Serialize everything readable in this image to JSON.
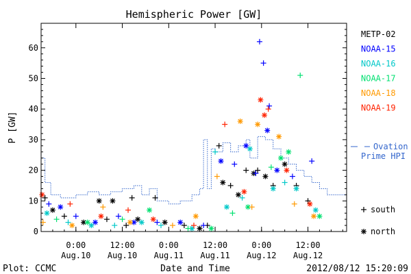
{
  "chart_data": {
    "type": "scatter",
    "title": "Hemispheric Power [GW]",
    "xlabel": "Date and Time",
    "ylabel": "P [GW]",
    "ylim": [
      0,
      68
    ],
    "xlim": [
      "2012-08-09 15:00",
      "2012-08-12 22:00"
    ],
    "yticks": [
      0,
      10,
      20,
      30,
      40,
      50,
      60
    ],
    "xticks": [
      {
        "time": "2012-08-10 00:00",
        "line1": "0:00",
        "line2": "Aug.10"
      },
      {
        "time": "2012-08-10 12:00",
        "line1": "12:00",
        "line2": "Aug.10"
      },
      {
        "time": "2012-08-11 00:00",
        "line1": "0:00",
        "line2": "Aug.11"
      },
      {
        "time": "2012-08-11 12:00",
        "line1": "12:00",
        "line2": "Aug.11"
      },
      {
        "time": "2012-08-12 00:00",
        "line1": "0:00",
        "line2": "Aug.12"
      },
      {
        "time": "2012-08-12 12:00",
        "line1": "12:00",
        "line2": "Aug.12"
      }
    ],
    "legend_placement": "right",
    "marker_legend": [
      {
        "symbol": "+",
        "label": "south"
      },
      {
        "symbol": "*",
        "label": "north"
      }
    ],
    "series": [
      {
        "name": "METP-02",
        "color": "#000000",
        "points": [
          {
            "t": "2012-08-09 16:00",
            "p": 11,
            "m": "+"
          },
          {
            "t": "2012-08-09 18:00",
            "p": 7,
            "m": "*"
          },
          {
            "t": "2012-08-09 21:00",
            "p": 5,
            "m": "+"
          },
          {
            "t": "2012-08-10 02:00",
            "p": 3,
            "m": "*"
          },
          {
            "t": "2012-08-10 06:00",
            "p": 10,
            "m": "*"
          },
          {
            "t": "2012-08-10 08:00",
            "p": 4,
            "m": "+"
          },
          {
            "t": "2012-08-10 09:30",
            "p": 10,
            "m": "*"
          },
          {
            "t": "2012-08-10 13:00",
            "p": 2,
            "m": "+"
          },
          {
            "t": "2012-08-10 14:30",
            "p": 11,
            "m": "+"
          },
          {
            "t": "2012-08-10 16:00",
            "p": 4,
            "m": "*"
          },
          {
            "t": "2012-08-10 20:30",
            "p": 11,
            "m": "+"
          },
          {
            "t": "2012-08-10 23:00",
            "p": 3,
            "m": "*"
          },
          {
            "t": "2012-08-11 04:00",
            "p": 2,
            "m": "+"
          },
          {
            "t": "2012-08-11 08:00",
            "p": 1,
            "m": "*"
          },
          {
            "t": "2012-08-11 10:00",
            "p": 2,
            "m": "+"
          },
          {
            "t": "2012-08-11 13:00",
            "p": 28,
            "m": "+"
          },
          {
            "t": "2012-08-11 14:00",
            "p": 16,
            "m": "*"
          },
          {
            "t": "2012-08-11 16:00",
            "p": 15,
            "m": "+"
          },
          {
            "t": "2012-08-11 18:00",
            "p": 12,
            "m": "*"
          },
          {
            "t": "2012-08-11 20:00",
            "p": 20,
            "m": "+"
          },
          {
            "t": "2012-08-11 22:00",
            "p": 19,
            "m": "*"
          },
          {
            "t": "2012-08-11 23:00",
            "p": 20,
            "m": "+"
          },
          {
            "t": "2012-08-12 01:00",
            "p": 18,
            "m": "*"
          },
          {
            "t": "2012-08-12 03:00",
            "p": 15,
            "m": "+"
          },
          {
            "t": "2012-08-12 06:00",
            "p": 22,
            "m": "*"
          },
          {
            "t": "2012-08-12 09:00",
            "p": 15,
            "m": "+"
          },
          {
            "t": "2012-08-12 12:00",
            "p": 10,
            "m": "+"
          }
        ]
      },
      {
        "name": "NOAA-15",
        "color": "#0000ff",
        "points": [
          {
            "t": "2012-08-09 17:00",
            "p": 9,
            "m": "+"
          },
          {
            "t": "2012-08-09 20:00",
            "p": 8,
            "m": "*"
          },
          {
            "t": "2012-08-10 00:00",
            "p": 5,
            "m": "+"
          },
          {
            "t": "2012-08-10 05:00",
            "p": 3,
            "m": "*"
          },
          {
            "t": "2012-08-10 11:00",
            "p": 5,
            "m": "+"
          },
          {
            "t": "2012-08-10 15:00",
            "p": 3,
            "m": "*"
          },
          {
            "t": "2012-08-10 21:00",
            "p": 3,
            "m": "+"
          },
          {
            "t": "2012-08-11 03:00",
            "p": 3,
            "m": "*"
          },
          {
            "t": "2012-08-11 09:00",
            "p": 2,
            "m": "+"
          },
          {
            "t": "2012-08-11 13:30",
            "p": 23,
            "m": "*"
          },
          {
            "t": "2012-08-11 17:00",
            "p": 22,
            "m": "+"
          },
          {
            "t": "2012-08-11 20:00",
            "p": 28,
            "m": "*"
          },
          {
            "t": "2012-08-11 22:30",
            "p": 19,
            "m": "+"
          },
          {
            "t": "2012-08-11 23:30",
            "p": 62,
            "m": "+"
          },
          {
            "t": "2012-08-12 00:30",
            "p": 55,
            "m": "+"
          },
          {
            "t": "2012-08-12 02:00",
            "p": 41,
            "m": "+"
          },
          {
            "t": "2012-08-12 01:30",
            "p": 33,
            "m": "*"
          },
          {
            "t": "2012-08-12 04:00",
            "p": 20,
            "m": "*"
          },
          {
            "t": "2012-08-12 08:00",
            "p": 18,
            "m": "+"
          },
          {
            "t": "2012-08-12 13:00",
            "p": 23,
            "m": "+"
          }
        ]
      },
      {
        "name": "NOAA-16",
        "color": "#00c8c8",
        "points": [
          {
            "t": "2012-08-09 16:30",
            "p": 6,
            "m": "*"
          },
          {
            "t": "2012-08-09 22:00",
            "p": 3,
            "m": "+"
          },
          {
            "t": "2012-08-10 04:00",
            "p": 2,
            "m": "*"
          },
          {
            "t": "2012-08-10 10:00",
            "p": 2,
            "m": "+"
          },
          {
            "t": "2012-08-10 17:00",
            "p": 3,
            "m": "*"
          },
          {
            "t": "2012-08-10 22:00",
            "p": 2,
            "m": "+"
          },
          {
            "t": "2012-08-11 06:00",
            "p": 1,
            "m": "*"
          },
          {
            "t": "2012-08-11 12:00",
            "p": 26,
            "m": "+"
          },
          {
            "t": "2012-08-11 15:00",
            "p": 8,
            "m": "*"
          },
          {
            "t": "2012-08-11 19:00",
            "p": 11,
            "m": "+"
          },
          {
            "t": "2012-08-11 21:00",
            "p": 27,
            "m": "*"
          },
          {
            "t": "2012-08-12 03:00",
            "p": 14,
            "m": "*"
          },
          {
            "t": "2012-08-12 06:00",
            "p": 16,
            "m": "+"
          },
          {
            "t": "2012-08-12 09:00",
            "p": 14,
            "m": "*"
          },
          {
            "t": "2012-08-12 14:00",
            "p": 7,
            "m": "*"
          }
        ]
      },
      {
        "name": "NOAA-17",
        "color": "#00e070",
        "points": [
          {
            "t": "2012-08-09 19:00",
            "p": 4,
            "m": "+"
          },
          {
            "t": "2012-08-10 03:00",
            "p": 3,
            "m": "*"
          },
          {
            "t": "2012-08-10 12:00",
            "p": 4,
            "m": "+"
          },
          {
            "t": "2012-08-10 19:00",
            "p": 7,
            "m": "*"
          },
          {
            "t": "2012-08-11 05:00",
            "p": 1,
            "m": "+"
          },
          {
            "t": "2012-08-11 11:00",
            "p": 1,
            "m": "*"
          },
          {
            "t": "2012-08-11 16:30",
            "p": 6,
            "m": "+"
          },
          {
            "t": "2012-08-11 20:30",
            "p": 8,
            "m": "*"
          },
          {
            "t": "2012-08-12 02:30",
            "p": 21,
            "m": "+"
          },
          {
            "t": "2012-08-12 05:00",
            "p": 24,
            "m": "*"
          },
          {
            "t": "2012-08-12 07:00",
            "p": 26,
            "m": "*"
          },
          {
            "t": "2012-08-12 10:00",
            "p": 51,
            "m": "+"
          },
          {
            "t": "2012-08-12 15:00",
            "p": 5,
            "m": "*"
          }
        ]
      },
      {
        "name": "NOAA-18",
        "color": "#ff9900",
        "points": [
          {
            "t": "2012-08-09 15:30",
            "p": 3,
            "m": "+"
          },
          {
            "t": "2012-08-09 23:00",
            "p": 2,
            "m": "*"
          },
          {
            "t": "2012-08-10 07:00",
            "p": 8,
            "m": "+"
          },
          {
            "t": "2012-08-10 14:00",
            "p": 3,
            "m": "*"
          },
          {
            "t": "2012-08-11 01:00",
            "p": 2,
            "m": "+"
          },
          {
            "t": "2012-08-11 07:00",
            "p": 5,
            "m": "*"
          },
          {
            "t": "2012-08-11 12:30",
            "p": 18,
            "m": "+"
          },
          {
            "t": "2012-08-11 18:30",
            "p": 36,
            "m": "*"
          },
          {
            "t": "2012-08-11 21:30",
            "p": 8,
            "m": "+"
          },
          {
            "t": "2012-08-11 23:00",
            "p": 35,
            "m": "*"
          },
          {
            "t": "2012-08-12 04:30",
            "p": 31,
            "m": "*"
          },
          {
            "t": "2012-08-12 08:30",
            "p": 9,
            "m": "+"
          },
          {
            "t": "2012-08-12 13:30",
            "p": 5,
            "m": "*"
          }
        ]
      },
      {
        "name": "NOAA-19",
        "color": "#ff2200",
        "points": [
          {
            "t": "2012-08-09 15:15",
            "p": 12,
            "m": "*"
          },
          {
            "t": "2012-08-09 22:30",
            "p": 9,
            "m": "+"
          },
          {
            "t": "2012-08-10 06:30",
            "p": 5,
            "m": "*"
          },
          {
            "t": "2012-08-10 13:30",
            "p": 7,
            "m": "+"
          },
          {
            "t": "2012-08-10 20:00",
            "p": 4,
            "m": "*"
          },
          {
            "t": "2012-08-11 06:30",
            "p": 2,
            "m": "+"
          },
          {
            "t": "2012-08-11 14:30",
            "p": 35,
            "m": "+"
          },
          {
            "t": "2012-08-11 19:30",
            "p": 13,
            "m": "*"
          },
          {
            "t": "2012-08-11 23:45",
            "p": 43,
            "m": "*"
          },
          {
            "t": "2012-08-12 00:45",
            "p": 38,
            "m": "*"
          },
          {
            "t": "2012-08-12 01:45",
            "p": 40,
            "m": "+"
          },
          {
            "t": "2012-08-12 06:30",
            "p": 20,
            "m": "*"
          },
          {
            "t": "2012-08-12 12:30",
            "p": 9,
            "m": "*"
          }
        ]
      }
    ],
    "line_series": [
      {
        "name": "Ovation Prime HPI",
        "legend_lines": [
          "Ovation",
          "Prime HPI"
        ],
        "color": "#3366cc",
        "style": "stepped",
        "points": [
          [
            "2012-08-09 15:00",
            24
          ],
          [
            "2012-08-09 16:00",
            16
          ],
          [
            "2012-08-09 17:30",
            12
          ],
          [
            "2012-08-09 20:00",
            11
          ],
          [
            "2012-08-10 00:00",
            12
          ],
          [
            "2012-08-10 03:00",
            13
          ],
          [
            "2012-08-10 06:00",
            12
          ],
          [
            "2012-08-10 09:00",
            13
          ],
          [
            "2012-08-10 12:00",
            14
          ],
          [
            "2012-08-10 15:00",
            15
          ],
          [
            "2012-08-10 17:00",
            12
          ],
          [
            "2012-08-10 19:00",
            14
          ],
          [
            "2012-08-10 21:00",
            10
          ],
          [
            "2012-08-11 00:00",
            9
          ],
          [
            "2012-08-11 03:00",
            10
          ],
          [
            "2012-08-11 06:00",
            12
          ],
          [
            "2012-08-11 08:00",
            14
          ],
          [
            "2012-08-11 09:00",
            30
          ],
          [
            "2012-08-11 10:00",
            14
          ],
          [
            "2012-08-11 11:00",
            27
          ],
          [
            "2012-08-11 12:00",
            26
          ],
          [
            "2012-08-11 14:00",
            29
          ],
          [
            "2012-08-11 16:00",
            26
          ],
          [
            "2012-08-11 18:00",
            28
          ],
          [
            "2012-08-11 20:00",
            30
          ],
          [
            "2012-08-11 21:00",
            24
          ],
          [
            "2012-08-11 23:00",
            31
          ],
          [
            "2012-08-12 01:00",
            30
          ],
          [
            "2012-08-12 03:00",
            27
          ],
          [
            "2012-08-12 05:00",
            24
          ],
          [
            "2012-08-12 07:00",
            22
          ],
          [
            "2012-08-12 09:00",
            20
          ],
          [
            "2012-08-12 11:00",
            18
          ],
          [
            "2012-08-12 13:00",
            16
          ],
          [
            "2012-08-12 15:00",
            14
          ],
          [
            "2012-08-12 17:00",
            12
          ],
          [
            "2012-08-12 22:00",
            12
          ]
        ]
      }
    ]
  },
  "footer": {
    "left": "Plot: CCMC",
    "right": "2012/08/12 15:20:09"
  }
}
